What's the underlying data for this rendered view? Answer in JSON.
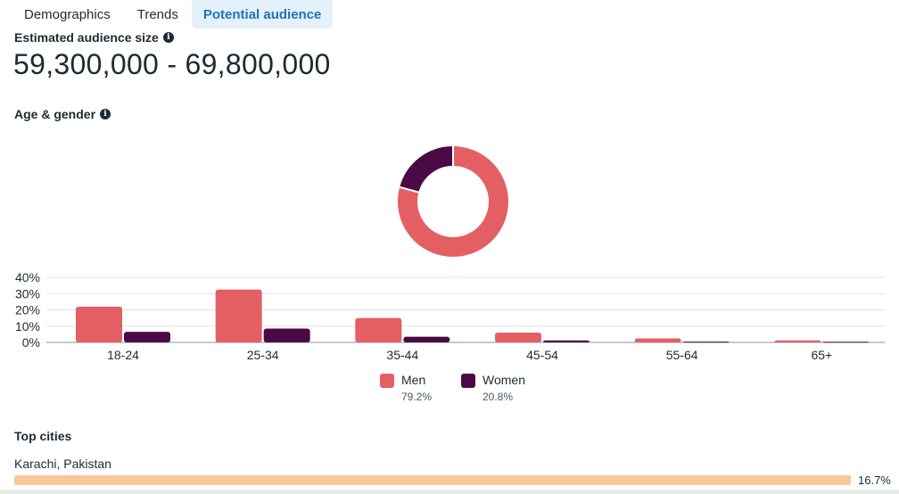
{
  "tabs": [
    {
      "label": "Demographics",
      "active": false
    },
    {
      "label": "Trends",
      "active": false
    },
    {
      "label": "Potential audience",
      "active": true
    }
  ],
  "estimated_audience": {
    "label": "Estimated audience size",
    "value": "59,300,000 - 69,800,000"
  },
  "age_gender": {
    "label": "Age & gender"
  },
  "legend": [
    {
      "name": "Men",
      "percent": "79.2%",
      "color": "#e45f64"
    },
    {
      "name": "Women",
      "percent": "20.8%",
      "color": "#4a0a45"
    }
  ],
  "chart_data": [
    {
      "type": "pie",
      "categories": [
        "Men",
        "Women"
      ],
      "values": [
        79.2,
        20.8
      ],
      "colors": [
        "#e45f64",
        "#4a0a45"
      ],
      "donut": true
    },
    {
      "type": "bar",
      "categories": [
        "18-24",
        "25-34",
        "35-44",
        "45-54",
        "55-64",
        "65+"
      ],
      "series": [
        {
          "name": "Men",
          "values": [
            22,
            32.5,
            15,
            6,
            2.5,
            1.2
          ],
          "color": "#e45f64"
        },
        {
          "name": "Women",
          "values": [
            6.5,
            8.5,
            3.5,
            1.2,
            0.5,
            0.4
          ],
          "color": "#4a0a45"
        }
      ],
      "yticks": [
        "0%",
        "10%",
        "20%",
        "30%",
        "40%"
      ],
      "ylim": [
        0,
        40
      ],
      "grid": true
    }
  ],
  "top_cities": {
    "label": "Top cities",
    "items": [
      {
        "name": "Karachi, Pakistan",
        "percent": "16.7%",
        "color": "#f8c899"
      }
    ]
  }
}
